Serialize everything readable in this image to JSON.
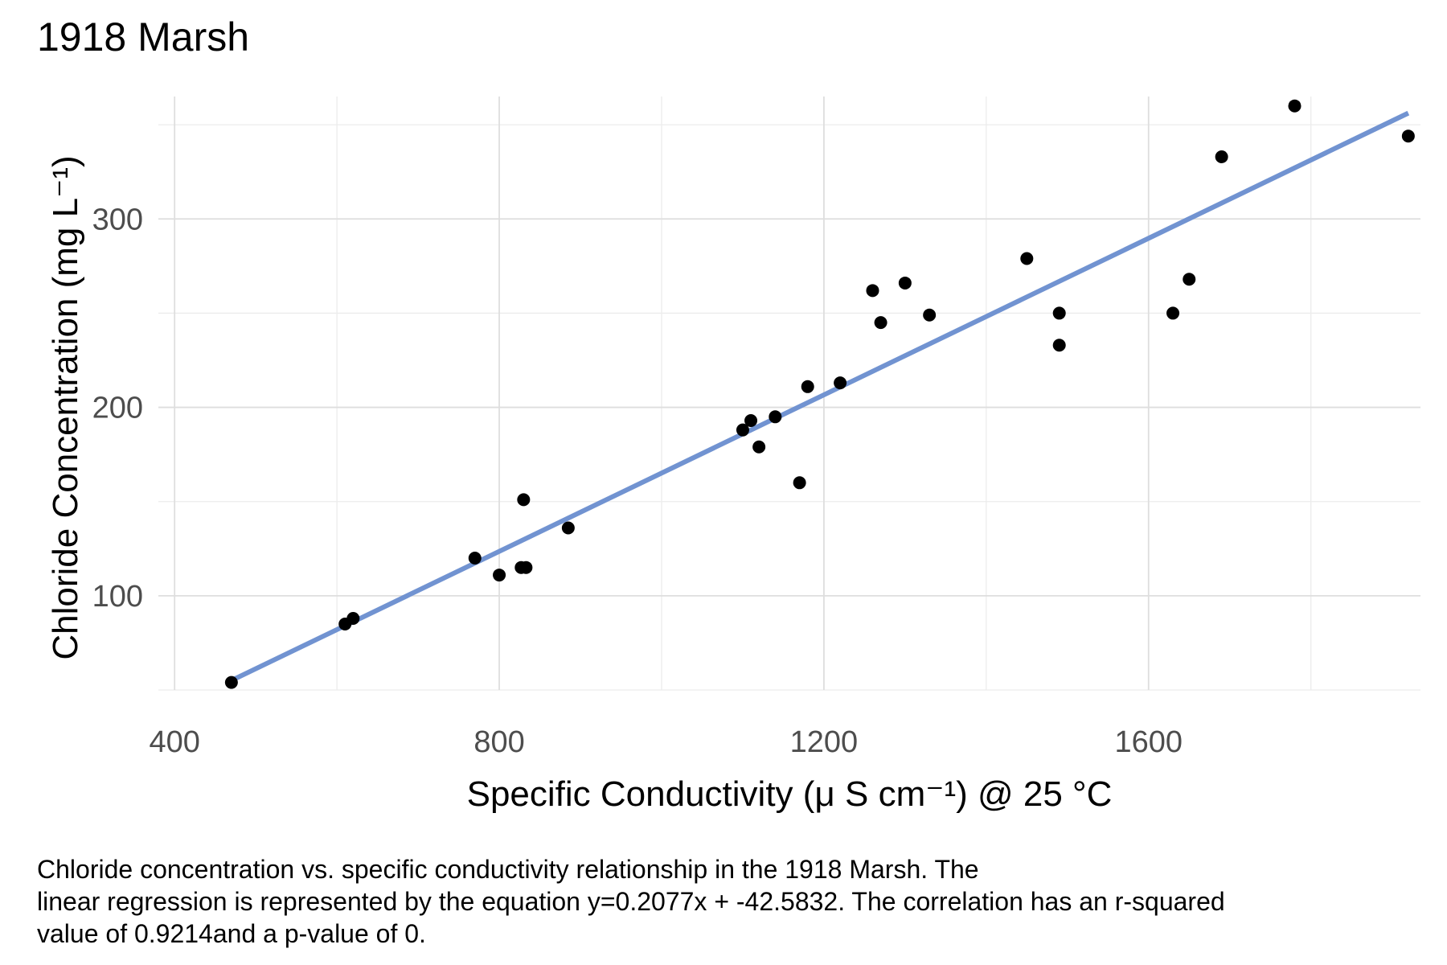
{
  "chart_data": {
    "type": "scatter",
    "title": "1918 Marsh",
    "xlabel": "Specific Conductivity (μ S cm⁻¹) @ 25 °C",
    "ylabel": "Chloride Concentration (mg L⁻¹)",
    "xlim": [
      380,
      1935
    ],
    "ylim": [
      50,
      365
    ],
    "x_ticks": [
      400,
      800,
      1200,
      1600
    ],
    "x_minor_ticks": [
      600,
      1000,
      1400,
      1800
    ],
    "y_ticks": [
      100,
      200,
      300
    ],
    "y_minor_ticks": [
      50,
      150,
      250,
      350
    ],
    "grid": true,
    "legend": "none",
    "point_color": "#000000",
    "line_color": "#7193d1",
    "points": [
      {
        "x": 470,
        "y": 54
      },
      {
        "x": 610,
        "y": 85
      },
      {
        "x": 620,
        "y": 88
      },
      {
        "x": 770,
        "y": 120
      },
      {
        "x": 800,
        "y": 111
      },
      {
        "x": 827,
        "y": 115
      },
      {
        "x": 833,
        "y": 115
      },
      {
        "x": 830,
        "y": 151
      },
      {
        "x": 885,
        "y": 136
      },
      {
        "x": 1100,
        "y": 188
      },
      {
        "x": 1110,
        "y": 193
      },
      {
        "x": 1120,
        "y": 179
      },
      {
        "x": 1140,
        "y": 195
      },
      {
        "x": 1170,
        "y": 160
      },
      {
        "x": 1180,
        "y": 211
      },
      {
        "x": 1220,
        "y": 213
      },
      {
        "x": 1260,
        "y": 262
      },
      {
        "x": 1270,
        "y": 245
      },
      {
        "x": 1300,
        "y": 266
      },
      {
        "x": 1330,
        "y": 249
      },
      {
        "x": 1450,
        "y": 279
      },
      {
        "x": 1490,
        "y": 250
      },
      {
        "x": 1490,
        "y": 233
      },
      {
        "x": 1630,
        "y": 250
      },
      {
        "x": 1650,
        "y": 268
      },
      {
        "x": 1690,
        "y": 333
      },
      {
        "x": 1780,
        "y": 360
      },
      {
        "x": 1920,
        "y": 344
      }
    ],
    "regression": {
      "slope": 0.2077,
      "intercept": -42.5832,
      "x_range": [
        470,
        1920
      ]
    }
  },
  "caption": {
    "line1": "Chloride concentration vs. specific conductivity relationship in the 1918 Marsh. The",
    "line2": "linear regression is represented by the equation y=0.2077x + -42.5832. The correlation has an r-squared",
    "line3": "value of 0.9214and a p-value of 0."
  }
}
